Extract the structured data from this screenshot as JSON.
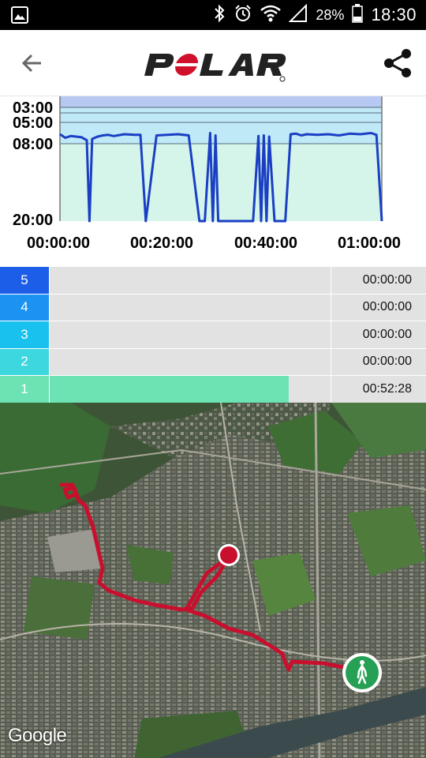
{
  "status_bar": {
    "battery": "28%",
    "time": "18:30",
    "icons": [
      "gallery-icon",
      "bluetooth-icon",
      "alarm-icon",
      "wifi-icon",
      "signal-icon",
      "battery-icon"
    ]
  },
  "header": {
    "logo_text": "POLAR",
    "back_icon": "arrow-left-icon",
    "share_icon": "share-icon"
  },
  "chart": {
    "y_ticks": [
      "03:00",
      "05:00",
      "08:00",
      "20:00"
    ],
    "x_ticks": [
      "00:00:00",
      "00:20:00",
      "00:40:00",
      "01:00:00"
    ],
    "colors": {
      "line": "#1a3fc4",
      "zone_top": "#b7c8f3",
      "zone_mid": "#bfe9f7",
      "zone_low": "#d6f5ea"
    }
  },
  "chart_data": {
    "type": "line",
    "title": "",
    "xlabel": "",
    "ylabel": "",
    "x_range": [
      "00:00:00",
      "01:00:00"
    ],
    "y_ticks": [
      "03:00",
      "05:00",
      "08:00",
      "20:00"
    ],
    "series": [
      {
        "x_min": [
          0,
          1,
          2,
          3,
          4,
          5,
          5.5,
          6,
          7,
          8,
          9,
          10,
          12,
          14,
          15,
          16,
          18,
          20,
          22,
          24,
          26,
          27,
          28,
          28.5,
          29,
          29.5,
          30,
          31,
          32,
          34,
          36,
          37,
          37.5,
          38,
          38.5,
          39,
          40,
          42,
          43,
          44,
          45,
          46,
          48,
          50,
          52,
          54,
          56,
          58,
          59,
          60
        ],
        "pace": [
          "06:40",
          "07:10",
          "06:55",
          "07:00",
          "07:05",
          "07:30",
          "20:00",
          "07:20",
          "07:00",
          "06:50",
          "06:45",
          "06:55",
          "06:40",
          "06:45",
          "06:45",
          "20:00",
          "06:50",
          "06:45",
          "06:40",
          "06:50",
          "20:00",
          "20:00",
          "06:30",
          "20:00",
          "06:50",
          "20:00",
          "20:00",
          "20:00",
          "20:00",
          "20:00",
          "20:00",
          "06:55",
          "20:00",
          "06:50",
          "20:00",
          "07:00",
          "20:00",
          "20:00",
          "06:40",
          "06:35",
          "06:50",
          "06:40",
          "06:45",
          "06:40",
          "06:50",
          "06:35",
          "06:40",
          "06:30",
          "06:45",
          "20:00"
        ]
      }
    ],
    "grid": false,
    "legend": "none"
  },
  "zones": [
    {
      "zone": "5",
      "time": "00:00:00",
      "fraction": 0.0,
      "color": "#1d5ee8"
    },
    {
      "zone": "4",
      "time": "00:00:00",
      "fraction": 0.0,
      "color": "#1c93f0"
    },
    {
      "zone": "3",
      "time": "00:00:00",
      "fraction": 0.0,
      "color": "#19c1ee"
    },
    {
      "zone": "2",
      "time": "00:00:00",
      "fraction": 0.0,
      "color": "#3dd7df"
    },
    {
      "zone": "1",
      "time": "00:52:28",
      "fraction": 0.85,
      "color": "#6de3b4"
    }
  ],
  "map": {
    "route_color": "#c8102e",
    "start_icon": "walking-person-icon",
    "end_marker": "finish-point-icon",
    "attribution": "Google"
  }
}
